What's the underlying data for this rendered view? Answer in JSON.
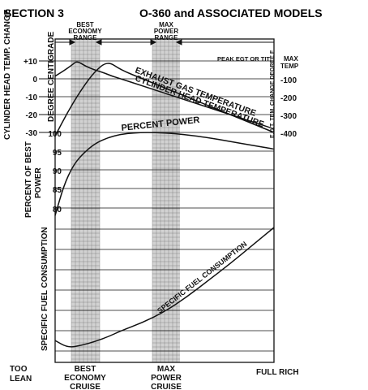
{
  "header": {
    "section": "SECTION 3",
    "title": "O-360 and ASSOCIATED MODELS"
  },
  "colors": {
    "ink": "#111111",
    "band_fill": "#d2d2d2",
    "paper": "#ffffff"
  },
  "chart_data": {
    "type": "line",
    "bands": [
      {
        "top_label": [
          "BEST",
          "ECONOMY",
          "RANGE"
        ],
        "bottom_label": [
          "BEST",
          "ECONOMY",
          "CRUISE"
        ]
      },
      {
        "top_label": [
          "MAX",
          "POWER",
          "RANGE"
        ],
        "bottom_label": [
          "MAX",
          "POWER",
          "CRUISE"
        ]
      }
    ],
    "x_end_labels": {
      "left": [
        "TOO",
        "LEAN"
      ],
      "right": "FULL RICH"
    },
    "left_axis_labels": {
      "cht_outer": "CYLINDER HEAD TEMP. CHANGE",
      "cht_inner": "DEGREE CENTIGRADE",
      "power": [
        "PERCENT OF BEST",
        "POWER"
      ],
      "sfc": "SPECIFIC FUEL CONSUMPTION"
    },
    "right_axis_labels": {
      "peak": "PEAK EGT OR TIT",
      "max_temp": [
        "MAX",
        "TEMP"
      ],
      "egt_axis": "E.G.T. TEM. CHANGE DEGREE F"
    },
    "cht_ticks": [
      "+10",
      "0",
      "-10",
      "-20",
      "-30"
    ],
    "power_ticks": [
      "100",
      "95",
      "90",
      "85",
      "80"
    ],
    "egt_ticks": [
      "-100",
      "-200",
      "-300",
      "-400"
    ],
    "series": [
      {
        "name": "EXHAUST GAS TEMPERATURE",
        "axis": "right_egt_F",
        "x": [
          0,
          4,
          8,
          10,
          14,
          18,
          22,
          26,
          30,
          40,
          50,
          60,
          70,
          80,
          90,
          100
        ],
        "y": [
          -85,
          -55,
          -20,
          0,
          -30,
          -50,
          -65,
          -85,
          -100,
          -140,
          -180,
          -220,
          -260,
          -300,
          -340,
          -380
        ]
      },
      {
        "name": "CYLINDER HEAD TEMPERATURE",
        "axis": "left_cht_C",
        "x": [
          0,
          6,
          12,
          18,
          24,
          30,
          40,
          50,
          60,
          70,
          80,
          90,
          100
        ],
        "y": [
          -32,
          -18,
          -6,
          4,
          10,
          5,
          0,
          -5,
          -10,
          -15,
          -20,
          -25,
          -30
        ]
      },
      {
        "name": "PERCENT POWER",
        "axis": "left_power_pct",
        "x": [
          0,
          4,
          8,
          12,
          18,
          24,
          30,
          36,
          42,
          50,
          60,
          70,
          80,
          90,
          100
        ],
        "y": [
          78,
          86,
          91,
          94,
          97,
          98.6,
          99.5,
          99.9,
          100,
          99.9,
          99.4,
          98.6,
          97.6,
          96.6,
          95.6
        ]
      },
      {
        "name": "SPECIFIC FUEL CONSUMPTION",
        "axis": "sfc_relative",
        "x": [
          0,
          6,
          12,
          18,
          24,
          30,
          40,
          50,
          60,
          70,
          80,
          90,
          100
        ],
        "y": [
          0.06,
          0,
          0.02,
          0.05,
          0.09,
          0.14,
          0.21,
          0.3,
          0.42,
          0.56,
          0.7,
          0.85,
          1.0
        ]
      }
    ]
  }
}
